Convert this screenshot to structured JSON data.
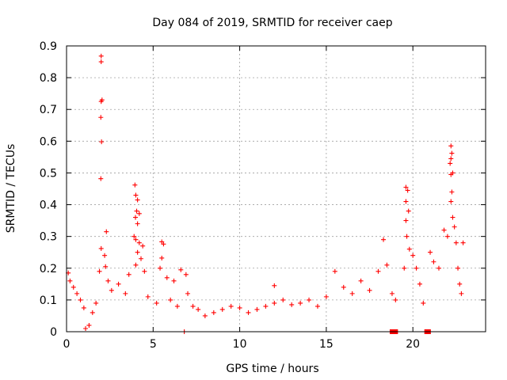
{
  "chart_data": {
    "type": "scatter",
    "title": "Day 084 of 2019, SRMTID for receiver caep",
    "xlabel": "GPS time / hours",
    "ylabel": "SRMTID / TECUs",
    "xlim": [
      0,
      24.2
    ],
    "ylim": [
      0,
      0.9
    ],
    "xticks": [
      0,
      5,
      10,
      15,
      20
    ],
    "xtick_labels": [
      "0",
      "5",
      "10",
      "15",
      "20"
    ],
    "yticks": [
      0,
      0.1,
      0.2,
      0.3,
      0.4,
      0.5,
      0.6,
      0.7,
      0.8,
      0.9
    ],
    "ytick_labels": [
      "0",
      "0.1",
      "0.2",
      "0.3",
      "0.4",
      "0.5",
      "0.6",
      "0.7",
      "0.8",
      "0.9"
    ],
    "grid": true,
    "marker_color": "#ff0000",
    "series": [
      {
        "name": "SRMTID",
        "marker": "plus",
        "points": [
          [
            2.0,
            0.868
          ],
          [
            2.0,
            0.85
          ],
          [
            2.05,
            0.73
          ],
          [
            2.0,
            0.725
          ],
          [
            1.98,
            0.675
          ],
          [
            2.02,
            0.598
          ],
          [
            1.98,
            0.482
          ],
          [
            2.3,
            0.315
          ],
          [
            2.0,
            0.262
          ],
          [
            2.2,
            0.24
          ],
          [
            2.25,
            0.205
          ],
          [
            1.9,
            0.19
          ],
          [
            2.4,
            0.16
          ],
          [
            3.95,
            0.462
          ],
          [
            4.0,
            0.43
          ],
          [
            4.1,
            0.415
          ],
          [
            4.05,
            0.38
          ],
          [
            4.2,
            0.372
          ],
          [
            3.98,
            0.36
          ],
          [
            4.1,
            0.34
          ],
          [
            3.9,
            0.3
          ],
          [
            4.0,
            0.29
          ],
          [
            4.2,
            0.28
          ],
          [
            4.4,
            0.27
          ],
          [
            4.1,
            0.25
          ],
          [
            4.3,
            0.23
          ],
          [
            4.0,
            0.21
          ],
          [
            4.5,
            0.19
          ],
          [
            5.5,
            0.283
          ],
          [
            5.6,
            0.276
          ],
          [
            5.5,
            0.232
          ],
          [
            5.4,
            0.2
          ],
          [
            5.8,
            0.17
          ],
          [
            6.2,
            0.16
          ],
          [
            6.6,
            0.195
          ],
          [
            6.9,
            0.18
          ],
          [
            0.1,
            0.185
          ],
          [
            0.2,
            0.16
          ],
          [
            0.4,
            0.14
          ],
          [
            0.6,
            0.12
          ],
          [
            0.8,
            0.1
          ],
          [
            1.0,
            0.075
          ],
          [
            1.3,
            0.02
          ],
          [
            1.1,
            0.01
          ],
          [
            1.5,
            0.06
          ],
          [
            1.7,
            0.09
          ],
          [
            2.6,
            0.13
          ],
          [
            3.0,
            0.15
          ],
          [
            3.4,
            0.12
          ],
          [
            3.6,
            0.18
          ],
          [
            4.7,
            0.11
          ],
          [
            5.2,
            0.09
          ],
          [
            6.0,
            0.1
          ],
          [
            6.4,
            0.08
          ],
          [
            7.0,
            0.12
          ],
          [
            7.3,
            0.08
          ],
          [
            6.8,
            0.0
          ],
          [
            7.6,
            0.07
          ],
          [
            8.0,
            0.05
          ],
          [
            8.5,
            0.06
          ],
          [
            9.0,
            0.07
          ],
          [
            9.5,
            0.08
          ],
          [
            10.0,
            0.075
          ],
          [
            10.5,
            0.06
          ],
          [
            11.0,
            0.07
          ],
          [
            11.5,
            0.08
          ],
          [
            12.0,
            0.09
          ],
          [
            12.5,
            0.1
          ],
          [
            12.0,
            0.145
          ],
          [
            13.0,
            0.085
          ],
          [
            13.5,
            0.09
          ],
          [
            14.0,
            0.1
          ],
          [
            14.5,
            0.08
          ],
          [
            15.0,
            0.11
          ],
          [
            15.5,
            0.19
          ],
          [
            16.0,
            0.14
          ],
          [
            16.5,
            0.12
          ],
          [
            17.0,
            0.16
          ],
          [
            17.5,
            0.13
          ],
          [
            18.0,
            0.19
          ],
          [
            18.3,
            0.29
          ],
          [
            18.5,
            0.21
          ],
          [
            18.8,
            0.12
          ],
          [
            19.0,
            0.1
          ],
          [
            19.5,
            0.2
          ],
          [
            19.6,
            0.455
          ],
          [
            19.7,
            0.445
          ],
          [
            19.6,
            0.41
          ],
          [
            19.75,
            0.38
          ],
          [
            19.6,
            0.35
          ],
          [
            19.65,
            0.3
          ],
          [
            19.8,
            0.26
          ],
          [
            20.0,
            0.24
          ],
          [
            20.2,
            0.2
          ],
          [
            20.4,
            0.15
          ],
          [
            20.6,
            0.09
          ],
          [
            21.0,
            0.25
          ],
          [
            21.2,
            0.22
          ],
          [
            21.5,
            0.2
          ],
          [
            21.8,
            0.32
          ],
          [
            22.0,
            0.3
          ],
          [
            22.2,
            0.585
          ],
          [
            22.25,
            0.562
          ],
          [
            22.2,
            0.545
          ],
          [
            22.15,
            0.53
          ],
          [
            22.3,
            0.5
          ],
          [
            22.2,
            0.495
          ],
          [
            22.25,
            0.44
          ],
          [
            22.2,
            0.41
          ],
          [
            22.3,
            0.36
          ],
          [
            22.4,
            0.33
          ],
          [
            22.5,
            0.28
          ],
          [
            22.6,
            0.2
          ],
          [
            22.7,
            0.15
          ],
          [
            22.8,
            0.12
          ],
          [
            22.9,
            0.28
          ]
        ]
      },
      {
        "name": "flag",
        "marker": "square",
        "points": [
          [
            18.8,
            0.0
          ],
          [
            19.0,
            0.0
          ],
          [
            20.8,
            0.0
          ],
          [
            20.9,
            0.0
          ]
        ]
      }
    ]
  }
}
